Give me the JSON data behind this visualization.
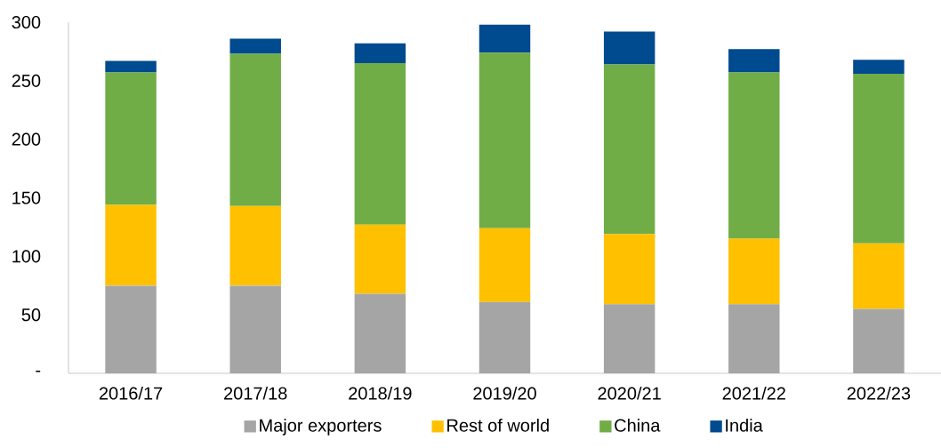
{
  "chart_data": {
    "type": "bar",
    "stacked": true,
    "categories": [
      "2016/17",
      "2017/18",
      "2018/19",
      "2019/20",
      "2020/21",
      "2021/22",
      "2022/23"
    ],
    "series": [
      {
        "name": "Major exporters",
        "color": "#a5a5a5",
        "values": [
          75,
          75,
          68,
          61,
          59,
          59,
          55
        ]
      },
      {
        "name": "Rest of world",
        "color": "#ffc000",
        "values": [
          69,
          68,
          59,
          63,
          60,
          56,
          56
        ]
      },
      {
        "name": "China",
        "color": "#70ad47",
        "values": [
          113,
          130,
          138,
          150,
          145,
          142,
          145
        ]
      },
      {
        "name": "India",
        "color": "#004a8f",
        "values": [
          10,
          13,
          17,
          24,
          28,
          20,
          12
        ]
      }
    ],
    "ylim": [
      0,
      300
    ],
    "yticks": [
      {
        "value": 0,
        "label": "-"
      },
      50,
      100,
      150,
      200,
      250,
      300
    ],
    "grid": false,
    "legend": "bottom"
  }
}
